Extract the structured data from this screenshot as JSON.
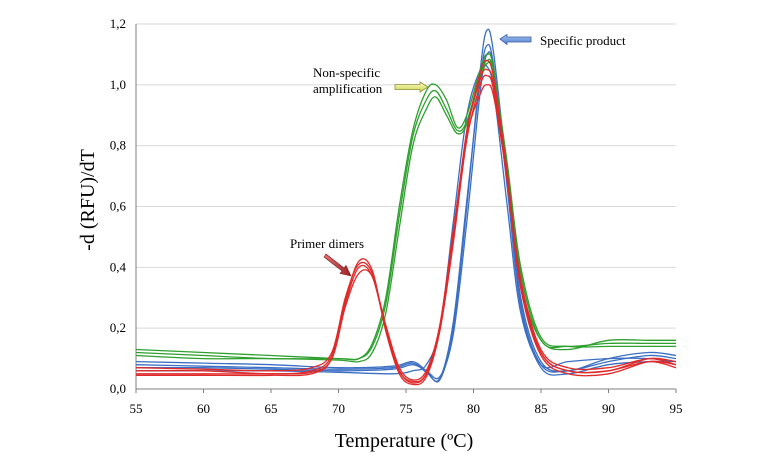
{
  "chart_data": {
    "type": "line",
    "xlabel": "Temperature (ºC)",
    "ylabel": "-d (RFU)/dT",
    "xlim": [
      55,
      95
    ],
    "ylim": [
      0,
      1.2
    ],
    "x_ticks": [
      55,
      60,
      65,
      70,
      75,
      80,
      85,
      90,
      95
    ],
    "y_ticks": [
      0,
      0.2,
      0.4,
      0.6,
      0.8,
      1.0,
      1.2
    ],
    "x_tick_labels": [
      "55",
      "60",
      "65",
      "70",
      "75",
      "80",
      "85",
      "90",
      "95"
    ],
    "y_tick_labels": [
      "0,0",
      "0,2",
      "0,4",
      "0,6",
      "0,8",
      "1,0",
      "1,2"
    ],
    "grid": "horizontal",
    "colors": {
      "blue": "#3b6fc4",
      "green": "#2ea02e",
      "red": "#e02a2a",
      "grid": "#d9d9d9"
    },
    "series": [
      {
        "color": "blue",
        "points": [
          [
            55,
            0.09
          ],
          [
            60,
            0.085
          ],
          [
            65,
            0.08
          ],
          [
            70,
            0.07
          ],
          [
            74,
            0.075
          ],
          [
            75.5,
            0.09
          ],
          [
            76.5,
            0.06
          ],
          [
            77.5,
            0.03
          ],
          [
            78.5,
            0.2
          ],
          [
            79.5,
            0.6
          ],
          [
            80.5,
            1.05
          ],
          [
            81,
            1.18
          ],
          [
            81.5,
            1.1
          ],
          [
            82.5,
            0.7
          ],
          [
            83.5,
            0.3
          ],
          [
            85,
            0.09
          ],
          [
            87,
            0.06
          ],
          [
            90,
            0.1
          ],
          [
            93,
            0.12
          ],
          [
            95,
            0.11
          ]
        ]
      },
      {
        "color": "blue",
        "points": [
          [
            55,
            0.08
          ],
          [
            60,
            0.075
          ],
          [
            65,
            0.07
          ],
          [
            70,
            0.065
          ],
          [
            74,
            0.07
          ],
          [
            75.5,
            0.085
          ],
          [
            76.5,
            0.055
          ],
          [
            77.5,
            0.035
          ],
          [
            78.5,
            0.22
          ],
          [
            79.5,
            0.62
          ],
          [
            80.5,
            1.02
          ],
          [
            81,
            1.13
          ],
          [
            81.5,
            1.06
          ],
          [
            82.5,
            0.68
          ],
          [
            83.5,
            0.28
          ],
          [
            85,
            0.08
          ],
          [
            87,
            0.06
          ],
          [
            90,
            0.09
          ],
          [
            93,
            0.11
          ],
          [
            95,
            0.1
          ]
        ]
      },
      {
        "color": "blue",
        "points": [
          [
            55,
            0.07
          ],
          [
            60,
            0.07
          ],
          [
            65,
            0.065
          ],
          [
            70,
            0.06
          ],
          [
            74,
            0.065
          ],
          [
            75.5,
            0.08
          ],
          [
            76.5,
            0.06
          ],
          [
            77.5,
            0.04
          ],
          [
            78.5,
            0.18
          ],
          [
            79.5,
            0.55
          ],
          [
            80.5,
            0.98
          ],
          [
            81,
            1.1
          ],
          [
            81.5,
            1.05
          ],
          [
            82.5,
            0.66
          ],
          [
            83.5,
            0.27
          ],
          [
            85,
            0.07
          ],
          [
            87,
            0.05
          ],
          [
            90,
            0.08
          ],
          [
            93,
            0.09
          ],
          [
            95,
            0.09
          ]
        ]
      },
      {
        "color": "blue",
        "points": [
          [
            55,
            0.06
          ],
          [
            60,
            0.06
          ],
          [
            65,
            0.06
          ],
          [
            70,
            0.055
          ],
          [
            74,
            0.05
          ],
          [
            75.5,
            0.06
          ],
          [
            76.5,
            0.08
          ],
          [
            77.5,
            0.2
          ],
          [
            78.5,
            0.55
          ],
          [
            79.5,
            0.9
          ],
          [
            80.5,
            1.05
          ],
          [
            81,
            1.06
          ],
          [
            81.5,
            0.98
          ],
          [
            82.5,
            0.6
          ],
          [
            83.5,
            0.25
          ],
          [
            85,
            0.08
          ],
          [
            87,
            0.09
          ],
          [
            90,
            0.1
          ],
          [
            93,
            0.1
          ],
          [
            95,
            0.09
          ]
        ]
      },
      {
        "color": "green",
        "points": [
          [
            55,
            0.13
          ],
          [
            60,
            0.12
          ],
          [
            65,
            0.11
          ],
          [
            70,
            0.1
          ],
          [
            71.5,
            0.1
          ],
          [
            72.5,
            0.15
          ],
          [
            73.5,
            0.3
          ],
          [
            74.5,
            0.6
          ],
          [
            75.5,
            0.85
          ],
          [
            76.5,
            0.98
          ],
          [
            77.2,
            1.0
          ],
          [
            78,
            0.95
          ],
          [
            78.8,
            0.86
          ],
          [
            79.5,
            0.9
          ],
          [
            80.5,
            1.05
          ],
          [
            81,
            1.1
          ],
          [
            81.5,
            1.05
          ],
          [
            82.5,
            0.7
          ],
          [
            83.5,
            0.35
          ],
          [
            85,
            0.16
          ],
          [
            87,
            0.13
          ],
          [
            90,
            0.16
          ],
          [
            93,
            0.16
          ],
          [
            95,
            0.16
          ]
        ]
      },
      {
        "color": "green",
        "points": [
          [
            55,
            0.12
          ],
          [
            60,
            0.11
          ],
          [
            65,
            0.1
          ],
          [
            70,
            0.1
          ],
          [
            71.5,
            0.1
          ],
          [
            72.5,
            0.14
          ],
          [
            73.5,
            0.28
          ],
          [
            74.5,
            0.57
          ],
          [
            75.5,
            0.83
          ],
          [
            76.5,
            0.95
          ],
          [
            77.2,
            0.98
          ],
          [
            78,
            0.92
          ],
          [
            78.8,
            0.85
          ],
          [
            79.5,
            0.88
          ],
          [
            80.5,
            1.03
          ],
          [
            81,
            1.08
          ],
          [
            81.5,
            1.04
          ],
          [
            82.5,
            0.72
          ],
          [
            83.5,
            0.38
          ],
          [
            85,
            0.16
          ],
          [
            87,
            0.14
          ],
          [
            90,
            0.15
          ],
          [
            93,
            0.15
          ],
          [
            95,
            0.15
          ]
        ]
      },
      {
        "color": "green",
        "points": [
          [
            55,
            0.11
          ],
          [
            60,
            0.1
          ],
          [
            65,
            0.1
          ],
          [
            70,
            0.095
          ],
          [
            71.5,
            0.09
          ],
          [
            72.5,
            0.12
          ],
          [
            73.5,
            0.25
          ],
          [
            74.5,
            0.53
          ],
          [
            75.5,
            0.8
          ],
          [
            76.5,
            0.92
          ],
          [
            77.2,
            0.96
          ],
          [
            78,
            0.9
          ],
          [
            78.8,
            0.84
          ],
          [
            79.5,
            0.87
          ],
          [
            80.5,
            1.02
          ],
          [
            81,
            1.07
          ],
          [
            81.5,
            1.04
          ],
          [
            82.5,
            0.74
          ],
          [
            83.5,
            0.4
          ],
          [
            85,
            0.17
          ],
          [
            87,
            0.14
          ],
          [
            90,
            0.14
          ],
          [
            93,
            0.14
          ],
          [
            95,
            0.14
          ]
        ]
      },
      {
        "color": "red",
        "points": [
          [
            55,
            0.07
          ],
          [
            60,
            0.065
          ],
          [
            65,
            0.06
          ],
          [
            68,
            0.07
          ],
          [
            69.5,
            0.12
          ],
          [
            70.5,
            0.3
          ],
          [
            71.5,
            0.41
          ],
          [
            72.5,
            0.38
          ],
          [
            73.5,
            0.2
          ],
          [
            74.5,
            0.06
          ],
          [
            75.5,
            0.02
          ],
          [
            76.5,
            0.05
          ],
          [
            77.5,
            0.2
          ],
          [
            78.5,
            0.5
          ],
          [
            79.5,
            0.85
          ],
          [
            80.5,
            1.02
          ],
          [
            81,
            1.05
          ],
          [
            81.5,
            1.0
          ],
          [
            82.5,
            0.7
          ],
          [
            83.5,
            0.35
          ],
          [
            85,
            0.12
          ],
          [
            87,
            0.06
          ],
          [
            90,
            0.06
          ],
          [
            93,
            0.1
          ],
          [
            95,
            0.09
          ]
        ]
      },
      {
        "color": "red",
        "points": [
          [
            55,
            0.06
          ],
          [
            60,
            0.06
          ],
          [
            65,
            0.05
          ],
          [
            68,
            0.06
          ],
          [
            69.5,
            0.11
          ],
          [
            70.5,
            0.29
          ],
          [
            71.5,
            0.42
          ],
          [
            72.5,
            0.39
          ],
          [
            73.5,
            0.19
          ],
          [
            74.5,
            0.05
          ],
          [
            75.5,
            0.015
          ],
          [
            76.5,
            0.04
          ],
          [
            77.5,
            0.19
          ],
          [
            78.5,
            0.48
          ],
          [
            79.5,
            0.82
          ],
          [
            80.5,
            1.0
          ],
          [
            81,
            1.03
          ],
          [
            81.5,
            0.98
          ],
          [
            82.5,
            0.68
          ],
          [
            83.5,
            0.33
          ],
          [
            85,
            0.11
          ],
          [
            87,
            0.05
          ],
          [
            90,
            0.05
          ],
          [
            93,
            0.09
          ],
          [
            95,
            0.08
          ]
        ]
      },
      {
        "color": "red",
        "points": [
          [
            55,
            0.05
          ],
          [
            60,
            0.05
          ],
          [
            65,
            0.05
          ],
          [
            68,
            0.055
          ],
          [
            69.5,
            0.1
          ],
          [
            70.5,
            0.27
          ],
          [
            71.5,
            0.38
          ],
          [
            72.5,
            0.37
          ],
          [
            73.5,
            0.21
          ],
          [
            74.5,
            0.07
          ],
          [
            75.5,
            0.03
          ],
          [
            76.5,
            0.06
          ],
          [
            77.5,
            0.21
          ],
          [
            78.5,
            0.52
          ],
          [
            79.5,
            0.83
          ],
          [
            80.5,
            0.97
          ],
          [
            81,
            1.0
          ],
          [
            81.5,
            0.96
          ],
          [
            82.5,
            0.69
          ],
          [
            83.5,
            0.36
          ],
          [
            85,
            0.13
          ],
          [
            87,
            0.07
          ],
          [
            90,
            0.07
          ],
          [
            93,
            0.1
          ],
          [
            95,
            0.08
          ]
        ]
      },
      {
        "color": "red",
        "points": [
          [
            55,
            0.045
          ],
          [
            60,
            0.045
          ],
          [
            65,
            0.045
          ],
          [
            68,
            0.05
          ],
          [
            69.5,
            0.1
          ],
          [
            70.5,
            0.28
          ],
          [
            71.5,
            0.4
          ],
          [
            72.5,
            0.37
          ],
          [
            73.5,
            0.2
          ],
          [
            74.5,
            0.06
          ],
          [
            75.5,
            0.025
          ],
          [
            76.5,
            0.05
          ],
          [
            77.5,
            0.2
          ],
          [
            78.5,
            0.5
          ],
          [
            79.5,
            0.84
          ],
          [
            80.5,
            1.04
          ],
          [
            81,
            1.08
          ],
          [
            81.5,
            1.02
          ],
          [
            82.5,
            0.71
          ],
          [
            83.5,
            0.34
          ],
          [
            85,
            0.12
          ],
          [
            87,
            0.06
          ],
          [
            90,
            0.06
          ],
          [
            93,
            0.09
          ],
          [
            95,
            0.07
          ]
        ]
      }
    ],
    "annotations": [
      {
        "text": "Specific product",
        "arrow_color": "blue",
        "points_to": [
          81,
          1.17
        ]
      },
      {
        "text": "Non-specific amplification",
        "lines": [
          "Non-specific",
          "amplification"
        ],
        "arrow_color": "yellow",
        "points_to": [
          76.3,
          0.99
        ]
      },
      {
        "text": "Primer dimers",
        "arrow_color": "red",
        "points_to": [
          71.4,
          0.38
        ]
      }
    ]
  }
}
